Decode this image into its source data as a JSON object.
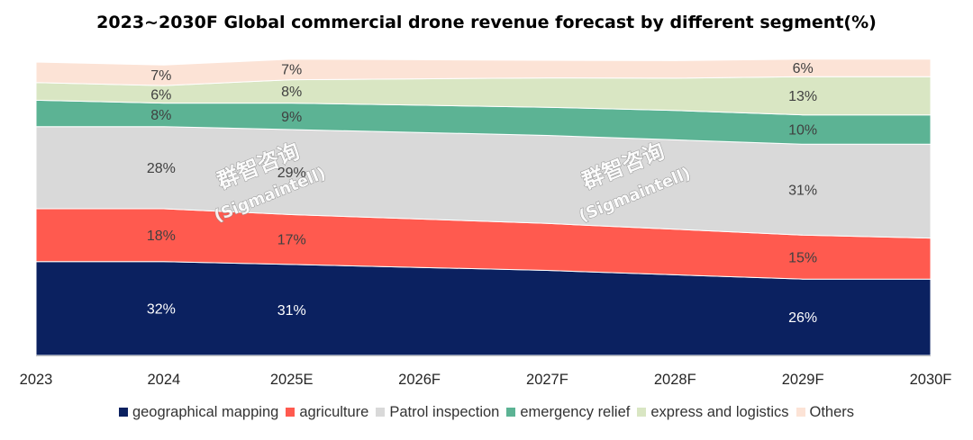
{
  "chart_data": {
    "type": "area",
    "stacked": true,
    "normalized": true,
    "title": "2023~2030F Global commercial drone revenue forecast by different segment(%)",
    "xlabel": "",
    "ylabel": "",
    "ylim": [
      0,
      100
    ],
    "categories": [
      "2023",
      "2024",
      "2025E",
      "2026F",
      "2027F",
      "2028F",
      "2029F",
      "2030F"
    ],
    "series": [
      {
        "name": "geographical mapping",
        "color": "#0b2160",
        "values": [
          32,
          32,
          31,
          30,
          29,
          27.5,
          26,
          26
        ]
      },
      {
        "name": "agriculture",
        "color": "#ff5a4f",
        "values": [
          18,
          18,
          17,
          16.5,
          16,
          15.5,
          15,
          14
        ]
      },
      {
        "name": "Patrol inspection",
        "color": "#d9d9d9",
        "values": [
          28,
          28,
          29,
          29.5,
          30,
          30.5,
          31,
          32
        ]
      },
      {
        "name": "emergency relief",
        "color": "#5cb394",
        "values": [
          9,
          8,
          9,
          9.3,
          9.6,
          10,
          10,
          10
        ]
      },
      {
        "name": "express and logistics",
        "color": "#d9e6c3",
        "values": [
          6,
          6,
          8,
          9,
          10,
          11,
          13,
          13
        ]
      },
      {
        "name": "Others",
        "color": "#fce3d6",
        "values": [
          7,
          7,
          7,
          6.5,
          6,
          6,
          6,
          6
        ]
      }
    ],
    "data_labels": [
      {
        "series": 0,
        "index": 1,
        "text": "32%"
      },
      {
        "series": 0,
        "index": 2,
        "text": "31%"
      },
      {
        "series": 0,
        "index": 6,
        "text": "26%"
      },
      {
        "series": 1,
        "index": 1,
        "text": "18%"
      },
      {
        "series": 1,
        "index": 2,
        "text": "17%"
      },
      {
        "series": 1,
        "index": 6,
        "text": "15%"
      },
      {
        "series": 2,
        "index": 1,
        "text": "28%"
      },
      {
        "series": 2,
        "index": 2,
        "text": "29%"
      },
      {
        "series": 2,
        "index": 6,
        "text": "31%"
      },
      {
        "series": 3,
        "index": 1,
        "text": "8%"
      },
      {
        "series": 3,
        "index": 2,
        "text": "9%"
      },
      {
        "series": 3,
        "index": 6,
        "text": "10%"
      },
      {
        "series": 4,
        "index": 1,
        "text": "6%"
      },
      {
        "series": 4,
        "index": 2,
        "text": "8%"
      },
      {
        "series": 4,
        "index": 6,
        "text": "13%"
      },
      {
        "series": 5,
        "index": 1,
        "text": "7%"
      },
      {
        "series": 5,
        "index": 2,
        "text": "7%"
      },
      {
        "series": 5,
        "index": 6,
        "text": "6%"
      }
    ],
    "legend_position": "bottom",
    "grid": false
  },
  "watermark": {
    "line1": "群智咨询",
    "line2": "(Sigmaintell)"
  }
}
